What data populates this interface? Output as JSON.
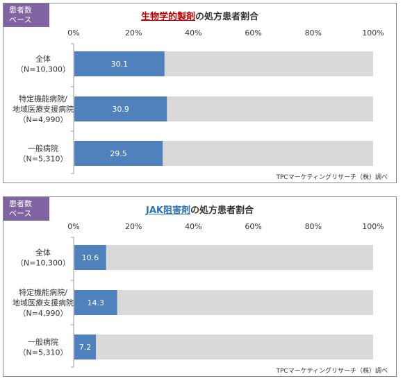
{
  "chart_data": [
    {
      "type": "bar",
      "orientation": "horizontal",
      "stacked_to": 100,
      "badge_lines": [
        "患者数",
        "ベース"
      ],
      "title_highlight": "生物学的製剤",
      "title_rest": "の処方患者割合",
      "categories": [
        [
          "全体",
          "（N=10,300）"
        ],
        [
          "特定機能病院/",
          "地域医療支援病院",
          "（N=4,990）"
        ],
        [
          "一般病院",
          "（N=5,310）"
        ]
      ],
      "values": [
        30.1,
        30.9,
        29.5
      ],
      "value_labels": [
        "30.1",
        "30.9",
        "29.5"
      ],
      "xlim": [
        0,
        100
      ],
      "xticks": [
        "0%",
        "20%",
        "40%",
        "60%",
        "80%",
        "100%"
      ],
      "source": "TPCマーケティングリサーチ（株）調べ",
      "colors": {
        "bar": "#4f81bd",
        "track": "#d9d9d9",
        "badge": "#8064a2",
        "highlight": "#c00000"
      }
    },
    {
      "type": "bar",
      "orientation": "horizontal",
      "stacked_to": 100,
      "badge_lines": [
        "患者数",
        "ベース"
      ],
      "title_highlight": "JAK阻害剤",
      "title_rest": "の処方患者割合",
      "categories": [
        [
          "全体",
          "（N=10,300）"
        ],
        [
          "特定機能病院/",
          "地域医療支援病院",
          "（N=4,990）"
        ],
        [
          "一般病院",
          "（N=5,310）"
        ]
      ],
      "values": [
        10.6,
        14.3,
        7.2
      ],
      "value_labels": [
        "10.6",
        "14.3",
        "7.2"
      ],
      "xlim": [
        0,
        100
      ],
      "xticks": [
        "0%",
        "20%",
        "40%",
        "60%",
        "80%",
        "100%"
      ],
      "source": "TPCマーケティングリサーチ（株）調べ",
      "colors": {
        "bar": "#4f81bd",
        "track": "#d9d9d9",
        "badge": "#8064a2",
        "highlight": "#2e75b6"
      }
    }
  ]
}
